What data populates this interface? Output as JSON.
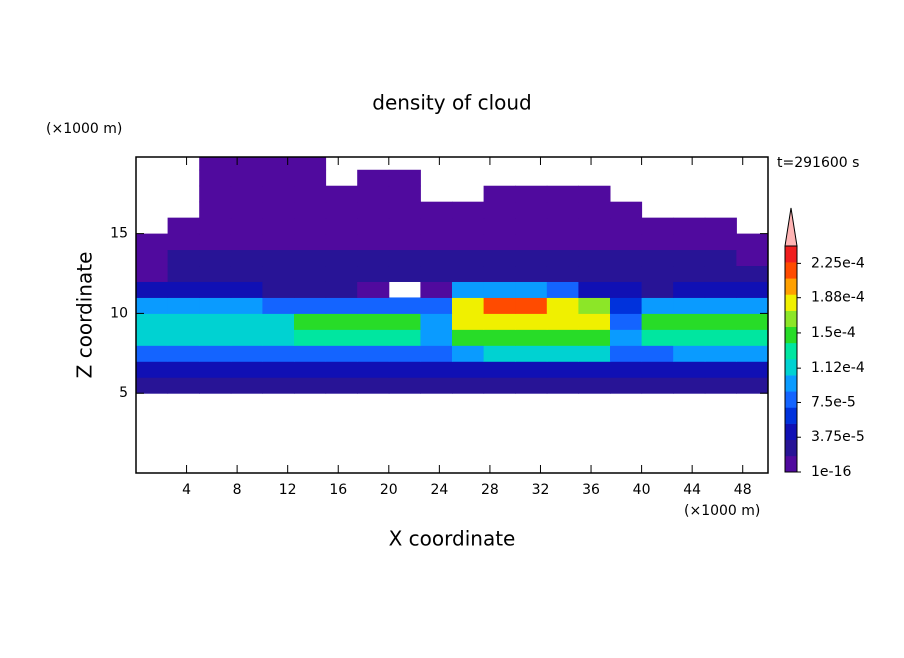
{
  "chart_data": {
    "type": "contour",
    "title": "density of cloud",
    "subtitle": "t=291600 s",
    "x_label": "X coordinate",
    "y_label": "Z coordinate",
    "x_unit": "(×1000 m)",
    "y_unit": "(×1000 m)",
    "xlim": [
      0,
      50
    ],
    "ylim": [
      0,
      19.8
    ],
    "xticks": [
      4,
      8,
      12,
      16,
      20,
      24,
      28,
      32,
      36,
      40,
      44,
      48
    ],
    "yticks": [
      5,
      10,
      15
    ],
    "x_edges": [
      0,
      2.5,
      5,
      7.5,
      10,
      12.5,
      15,
      17.5,
      20,
      22.5,
      25,
      27.5,
      30,
      32.5,
      35,
      37.5,
      40,
      42.5,
      45,
      47.5,
      50
    ],
    "z_edges": [
      5,
      6,
      7,
      8,
      9,
      10,
      11,
      12,
      13,
      14,
      15,
      16,
      17,
      18,
      19,
      20
    ],
    "values": [
      [
        2e-05,
        2e-05,
        2e-05,
        2e-05,
        2e-05,
        2e-05,
        2e-05,
        2e-05,
        2e-05,
        2e-05,
        2e-05,
        2e-05,
        2e-05,
        2e-05,
        2e-05,
        2e-05,
        2e-05,
        2e-05,
        2e-05,
        2e-05
      ],
      [
        5e-05,
        5e-05,
        5e-05,
        5e-05,
        5e-05,
        5e-05,
        5e-05,
        5e-05,
        5e-05,
        5e-05,
        5e-05,
        5e-05,
        5e-05,
        5e-05,
        5e-05,
        5e-05,
        5e-05,
        5e-05,
        5e-05,
        5e-05
      ],
      [
        8e-05,
        8e-05,
        8e-05,
        8e-05,
        8e-05,
        8e-05,
        8e-05,
        8e-05,
        8e-05,
        8e-05,
        9e-05,
        0.00011,
        0.00011,
        0.00011,
        0.00011,
        8e-05,
        7e-05,
        9e-05,
        9e-05,
        9e-05
      ],
      [
        0.00011,
        0.00011,
        0.00011,
        0.00011,
        0.00011,
        0.00013,
        0.00013,
        0.00013,
        0.00013,
        0.0001,
        0.00015,
        0.00015,
        0.00015,
        0.00015,
        0.00015,
        0.0001,
        0.00013,
        0.00013,
        0.00013,
        0.00013
      ],
      [
        0.00012,
        0.00012,
        0.00012,
        0.00012,
        0.00012,
        0.00014,
        0.00014,
        0.00014,
        0.00014,
        0.0001,
        0.00018,
        0.00018,
        0.00018,
        0.00018,
        0.00018,
        8e-05,
        0.00015,
        0.00015,
        0.00015,
        0.00015
      ],
      [
        0.0001,
        0.0001,
        0.0001,
        0.0001,
        7e-05,
        7e-05,
        7e-05,
        7e-05,
        7e-05,
        7e-05,
        0.00019,
        0.00021,
        0.00021,
        0.00019,
        0.00016,
        6e-05,
        9e-05,
        9e-05,
        9e-05,
        9e-05
      ],
      [
        5e-05,
        5e-05,
        5e-05,
        5e-05,
        2.5e-05,
        2.5e-05,
        2.5e-05,
        1e-05,
        null,
        1e-05,
        0.0001,
        0.0001,
        0.0001,
        8e-05,
        4e-05,
        4e-05,
        3e-05,
        4e-05,
        4e-05,
        4e-05
      ],
      [
        1e-06,
        2e-05,
        2e-05,
        2e-05,
        2e-05,
        2e-05,
        2e-05,
        2e-05,
        2e-05,
        2e-05,
        2e-05,
        2e-05,
        2e-05,
        2e-05,
        2e-05,
        2e-05,
        2e-05,
        2e-05,
        2e-05,
        2e-05
      ],
      [
        1e-06,
        2e-05,
        2e-05,
        2e-05,
        2e-05,
        2e-05,
        2e-05,
        2e-05,
        2e-05,
        2e-05,
        2e-05,
        2e-05,
        2e-05,
        2e-05,
        2e-05,
        2e-05,
        2e-05,
        2e-05,
        2e-05,
        1e-06
      ],
      [
        1e-06,
        1e-06,
        1e-06,
        1e-06,
        1e-06,
        1e-06,
        1e-06,
        1e-06,
        1e-06,
        1e-06,
        1e-06,
        1e-06,
        1e-06,
        1e-06,
        1e-06,
        1e-06,
        1e-06,
        1e-06,
        1e-06,
        1e-06
      ],
      [
        null,
        1e-06,
        1e-06,
        1e-06,
        1e-06,
        1e-06,
        1e-06,
        1e-06,
        1e-06,
        1e-06,
        1e-06,
        1e-06,
        1e-06,
        1e-06,
        1e-06,
        1e-06,
        1e-06,
        1e-06,
        1e-06,
        null
      ],
      [
        null,
        null,
        1e-06,
        1e-06,
        1e-06,
        1e-06,
        1e-06,
        1e-06,
        1e-06,
        1e-06,
        1e-06,
        1e-06,
        1e-06,
        1e-06,
        1e-06,
        1e-06,
        null,
        null,
        null,
        null
      ],
      [
        null,
        null,
        1e-06,
        1e-06,
        1e-06,
        1e-06,
        1e-06,
        1e-06,
        1e-06,
        null,
        null,
        1e-06,
        1e-06,
        1e-06,
        1e-06,
        null,
        null,
        null,
        null,
        null
      ],
      [
        null,
        null,
        1e-06,
        1e-06,
        1e-06,
        1e-06,
        null,
        1e-06,
        1e-06,
        null,
        null,
        null,
        null,
        null,
        null,
        null,
        null,
        null,
        null,
        null
      ],
      [
        null,
        null,
        1e-06,
        1e-06,
        1e-06,
        1e-06,
        null,
        null,
        null,
        null,
        null,
        null,
        null,
        null,
        null,
        null,
        null,
        null,
        null,
        null
      ]
    ],
    "clim": [
      1e-16,
      0.00024375
    ],
    "cticks": [
      {
        "value": 1e-16,
        "label": "1e-16"
      },
      {
        "value": 3.75e-05,
        "label": "3.75e-5"
      },
      {
        "value": 7.5e-05,
        "label": "7.5e-5"
      },
      {
        "value": 0.000112,
        "label": "1.12e-4"
      },
      {
        "value": 0.00015,
        "label": "1.5e-4"
      },
      {
        "value": 0.000188,
        "label": "1.88e-4"
      },
      {
        "value": 0.000225,
        "label": "2.25e-4"
      }
    ],
    "colors": [
      "#500a9e",
      "#281496",
      "#1010b4",
      "#0032dc",
      "#1464ff",
      "#0a9bff",
      "#00d2d2",
      "#00e6a0",
      "#28dc28",
      "#8ce628",
      "#f0f000",
      "#ffa000",
      "#ff4b00",
      "#f01e1e",
      "#ffb4b4"
    ]
  }
}
